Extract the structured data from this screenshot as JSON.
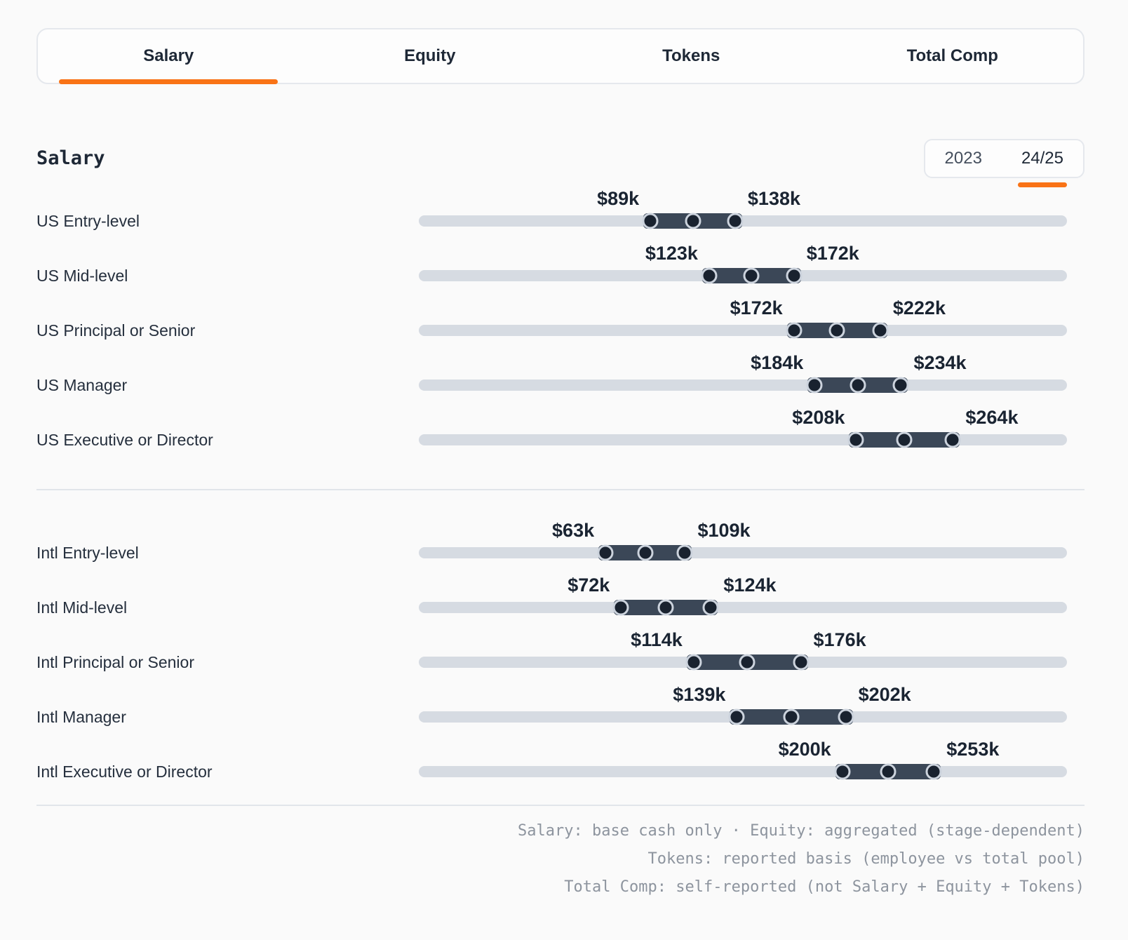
{
  "tabs": {
    "items": [
      {
        "label": "Salary",
        "active": true
      },
      {
        "label": "Equity",
        "active": false
      },
      {
        "label": "Tokens",
        "active": false
      },
      {
        "label": "Total Comp",
        "active": false
      }
    ]
  },
  "section": {
    "title": "Salary"
  },
  "year_toggle": {
    "options": [
      {
        "label": "2023",
        "active": false
      },
      {
        "label": "24/25",
        "active": true
      }
    ]
  },
  "chart_data": {
    "type": "bar",
    "variant": "horizontal-dumbbell-range",
    "title": "Salary",
    "unit": "USD (thousands)",
    "value_format": "${v}k",
    "axis": {
      "min": -45,
      "max": 330
    },
    "legend": "none",
    "grid": false,
    "groups": [
      {
        "name": "US",
        "rows": [
          {
            "label": "US Entry-level",
            "min": 89,
            "max": 138
          },
          {
            "label": "US Mid-level",
            "min": 123,
            "max": 172
          },
          {
            "label": "US Principal or Senior",
            "min": 172,
            "max": 222
          },
          {
            "label": "US Manager",
            "min": 184,
            "max": 234
          },
          {
            "label": "US Executive or Director",
            "min": 208,
            "max": 264
          }
        ]
      },
      {
        "name": "Intl",
        "rows": [
          {
            "label": "Intl Entry-level",
            "min": 63,
            "max": 109
          },
          {
            "label": "Intl Mid-level",
            "min": 72,
            "max": 124
          },
          {
            "label": "Intl Principal or Senior",
            "min": 114,
            "max": 176
          },
          {
            "label": "Intl Manager",
            "min": 139,
            "max": 202
          },
          {
            "label": "Intl Executive or Director",
            "min": 200,
            "max": 253
          }
        ]
      }
    ]
  },
  "footer": {
    "lines": [
      "Salary: base cash only · Equity: aggregated (stage-dependent)",
      "Tokens: reported basis (employee vs total pool)",
      "Total Comp: self-reported (not Salary + Equity + Tokens)"
    ]
  },
  "colors": {
    "accent": "#f97316",
    "bar": "#3b4757",
    "dot": "#19222f",
    "dot_ring": "#ccd3dd",
    "track": "#d6dbe2",
    "text_dark": "#1e2836",
    "text_muted": "#8d949e",
    "divider": "#e1e5ea",
    "border": "#e5e8ed",
    "page_bg": "#fafafa",
    "card_bg": "#fdfdfd"
  }
}
